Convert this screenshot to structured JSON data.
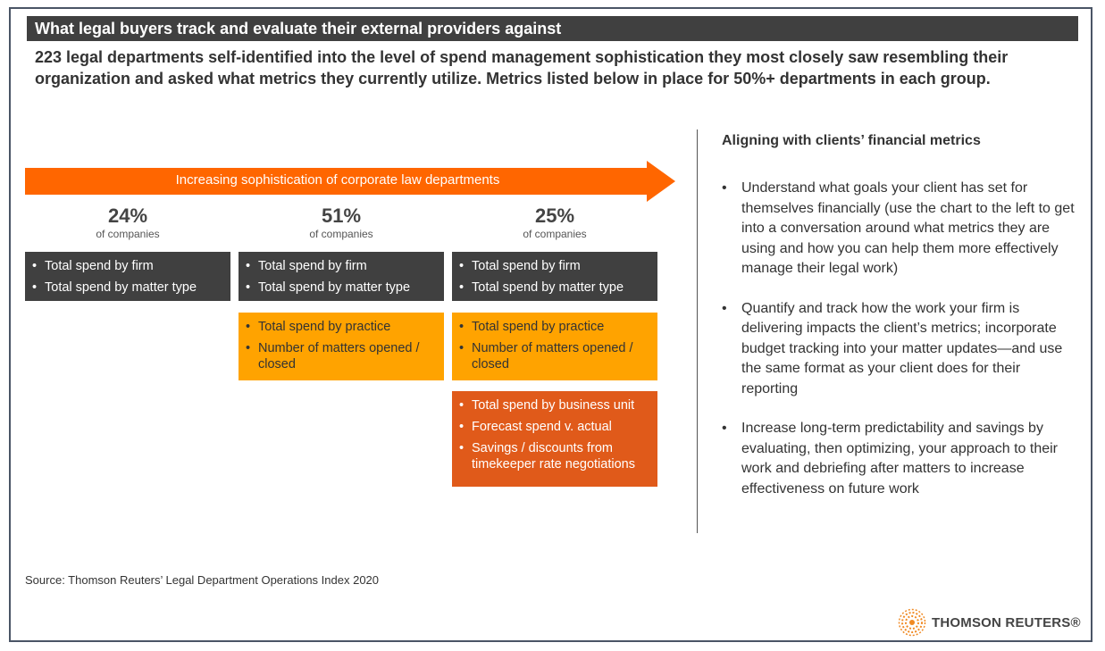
{
  "title": "What legal buyers track and evaluate their external providers against",
  "subtitle": "223 legal departments self-identified into the level of spend management sophistication they most closely saw resembling their organization and asked what metrics they currently utilize. Metrics listed below in place for 50%+ departments in each group.",
  "arrow_label": "Increasing sophistication of corporate law departments",
  "groups": [
    {
      "pct": "24%",
      "label": "of companies"
    },
    {
      "pct": "51%",
      "label": "of companies"
    },
    {
      "pct": "25%",
      "label": "of companies"
    }
  ],
  "tiers": {
    "basic": [
      "Total spend by firm",
      "Total spend by matter type"
    ],
    "intermediate": [
      "Total spend by practice",
      "Number of matters opened / closed"
    ],
    "advanced": [
      "Total spend by business unit",
      "Forecast spend v. actual",
      "Savings / discounts from timekeeper rate negotiations"
    ]
  },
  "colors": {
    "dark": "#404040",
    "orange": "#FFA300",
    "red": "#E05A1A",
    "arrow": "#FF6600"
  },
  "right": {
    "heading": "Aligning with clients’ financial metrics",
    "bullets": [
      "Understand what goals your client has set for themselves financially (use the chart to the left to get into a conversation around what metrics they are using and how you can help them more effectively manage their legal work)",
      "Quantify and track how the work your firm is delivering impacts the client’s metrics; incorporate budget tracking into your matter updates—and use the same format as your client does for their reporting",
      "Increase long-term predictability and savings by evaluating, then optimizing, your approach to their work and debriefing after matters to increase effectiveness on future work"
    ]
  },
  "source": "Source: Thomson Reuters’ Legal Department Operations Index 2020",
  "logo": "THOMSON REUTERS®"
}
